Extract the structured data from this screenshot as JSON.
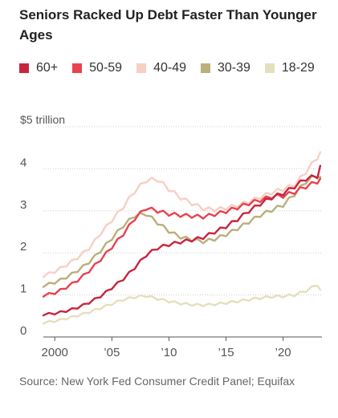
{
  "source": "Source: New York Fed Consumer Credit Panel; Equifax",
  "chart_data": {
    "type": "line",
    "title": "Seniors Racked Up Debt Faster Than Younger Ages",
    "xlabel": "",
    "ylabel": "",
    "xlim": [
      1999,
      2023.4
    ],
    "ylim": [
      0,
      5
    ],
    "y_unit_label": "$5 trillion",
    "y_ticks": [
      {
        "value": 0,
        "label": "0"
      },
      {
        "value": 1,
        "label": "1"
      },
      {
        "value": 2,
        "label": "2"
      },
      {
        "value": 3,
        "label": "3"
      },
      {
        "value": 4,
        "label": "4"
      },
      {
        "value": 5,
        "label": "$5 trillion"
      }
    ],
    "x_ticks": [
      {
        "value": 2000,
        "label": "2000"
      },
      {
        "value": 2005,
        "label": "'05"
      },
      {
        "value": 2010,
        "label": "'10"
      },
      {
        "value": 2015,
        "label": "'15"
      },
      {
        "value": 2020,
        "label": "'20"
      }
    ],
    "grid": "horizontal",
    "legend_position": "top",
    "series": [
      {
        "name": "60+",
        "color": "#c7253e",
        "points": [
          [
            1999,
            0.54
          ],
          [
            2000,
            0.56
          ],
          [
            2001,
            0.62
          ],
          [
            2002,
            0.7
          ],
          [
            2003,
            0.82
          ],
          [
            2004,
            0.97
          ],
          [
            2005,
            1.17
          ],
          [
            2006,
            1.38
          ],
          [
            2007,
            1.65
          ],
          [
            2008,
            1.95
          ],
          [
            2009,
            2.12
          ],
          [
            2010,
            2.2
          ],
          [
            2011,
            2.26
          ],
          [
            2012,
            2.31
          ],
          [
            2013,
            2.37
          ],
          [
            2014,
            2.5
          ],
          [
            2015,
            2.63
          ],
          [
            2016,
            2.8
          ],
          [
            2017,
            3.0
          ],
          [
            2018,
            3.17
          ],
          [
            2019,
            3.32
          ],
          [
            2020,
            3.42
          ],
          [
            2021,
            3.58
          ],
          [
            2022,
            3.77
          ],
          [
            2023,
            3.83
          ],
          [
            2023.3,
            4.12
          ]
        ]
      },
      {
        "name": "50-59",
        "color": "#e8424f",
        "points": [
          [
            1999,
            0.99
          ],
          [
            2000,
            1.05
          ],
          [
            2001,
            1.18
          ],
          [
            2002,
            1.35
          ],
          [
            2003,
            1.57
          ],
          [
            2004,
            1.84
          ],
          [
            2005,
            2.14
          ],
          [
            2006,
            2.45
          ],
          [
            2007,
            2.82
          ],
          [
            2008,
            3.07
          ],
          [
            2009,
            3.0
          ],
          [
            2010,
            2.93
          ],
          [
            2011,
            2.9
          ],
          [
            2012,
            2.88
          ],
          [
            2013,
            2.86
          ],
          [
            2014,
            2.92
          ],
          [
            2015,
            2.99
          ],
          [
            2016,
            3.08
          ],
          [
            2017,
            3.18
          ],
          [
            2018,
            3.26
          ],
          [
            2019,
            3.34
          ],
          [
            2020,
            3.36
          ],
          [
            2021,
            3.45
          ],
          [
            2022,
            3.58
          ],
          [
            2023,
            3.7
          ],
          [
            2023.3,
            3.78
          ]
        ]
      },
      {
        "name": "40-49",
        "color": "#f7cfc3",
        "points": [
          [
            1999,
            1.46
          ],
          [
            2000,
            1.56
          ],
          [
            2001,
            1.71
          ],
          [
            2002,
            1.89
          ],
          [
            2003,
            2.11
          ],
          [
            2004,
            2.46
          ],
          [
            2005,
            2.78
          ],
          [
            2006,
            3.1
          ],
          [
            2007,
            3.47
          ],
          [
            2008,
            3.73
          ],
          [
            2009,
            3.75
          ],
          [
            2010,
            3.52
          ],
          [
            2011,
            3.32
          ],
          [
            2012,
            3.18
          ],
          [
            2013,
            3.06
          ],
          [
            2014,
            3.03
          ],
          [
            2015,
            3.07
          ],
          [
            2016,
            3.13
          ],
          [
            2017,
            3.22
          ],
          [
            2018,
            3.33
          ],
          [
            2019,
            3.44
          ],
          [
            2020,
            3.52
          ],
          [
            2021,
            3.62
          ],
          [
            2022,
            3.93
          ],
          [
            2023,
            4.28
          ],
          [
            2023.3,
            4.42
          ]
        ]
      },
      {
        "name": "30-39",
        "color": "#b9b07c",
        "points": [
          [
            1999,
            1.22
          ],
          [
            2000,
            1.3
          ],
          [
            2001,
            1.42
          ],
          [
            2002,
            1.58
          ],
          [
            2003,
            1.78
          ],
          [
            2004,
            2.05
          ],
          [
            2005,
            2.35
          ],
          [
            2006,
            2.65
          ],
          [
            2007,
            2.89
          ],
          [
            2008,
            2.93
          ],
          [
            2009,
            2.72
          ],
          [
            2010,
            2.52
          ],
          [
            2011,
            2.38
          ],
          [
            2012,
            2.32
          ],
          [
            2013,
            2.27
          ],
          [
            2014,
            2.33
          ],
          [
            2015,
            2.44
          ],
          [
            2016,
            2.58
          ],
          [
            2017,
            2.74
          ],
          [
            2018,
            2.9
          ],
          [
            2019,
            3.02
          ],
          [
            2020,
            3.14
          ],
          [
            2021,
            3.4
          ],
          [
            2022,
            3.7
          ],
          [
            2023,
            3.85
          ],
          [
            2023.3,
            3.8
          ]
        ]
      },
      {
        "name": "18-29",
        "color": "#e4dfbd",
        "points": [
          [
            1999,
            0.34
          ],
          [
            2000,
            0.38
          ],
          [
            2001,
            0.44
          ],
          [
            2002,
            0.51
          ],
          [
            2003,
            0.59
          ],
          [
            2004,
            0.69
          ],
          [
            2005,
            0.79
          ],
          [
            2006,
            0.89
          ],
          [
            2007,
            0.95
          ],
          [
            2008,
            0.98
          ],
          [
            2009,
            0.91
          ],
          [
            2010,
            0.85
          ],
          [
            2011,
            0.8
          ],
          [
            2012,
            0.77
          ],
          [
            2013,
            0.76
          ],
          [
            2014,
            0.78
          ],
          [
            2015,
            0.81
          ],
          [
            2016,
            0.85
          ],
          [
            2017,
            0.89
          ],
          [
            2018,
            0.93
          ],
          [
            2019,
            0.96
          ],
          [
            2020,
            0.97
          ],
          [
            2021,
            1.0
          ],
          [
            2022,
            1.1
          ],
          [
            2023,
            1.25
          ],
          [
            2023.3,
            1.1
          ]
        ]
      }
    ]
  }
}
